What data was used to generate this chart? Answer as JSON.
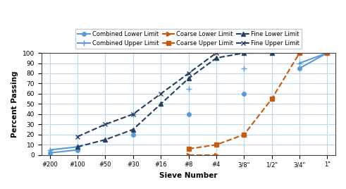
{
  "sieve_labels": [
    "#200",
    "#100",
    "#50",
    "#30",
    "#16",
    "#8",
    "#4",
    "3/8\"",
    "1/2\"",
    "3/4\"",
    "1\""
  ],
  "x_positions": [
    0,
    1,
    2,
    3,
    4,
    5,
    6,
    7,
    8,
    9,
    10
  ],
  "combined_lower": [
    2,
    5,
    null,
    20,
    null,
    40,
    null,
    60,
    null,
    85,
    100
  ],
  "combined_upper": [
    5,
    8,
    null,
    40,
    null,
    65,
    null,
    85,
    null,
    90,
    100
  ],
  "coarse_lower": [
    null,
    null,
    null,
    null,
    null,
    0,
    0,
    null,
    null,
    null,
    100
  ],
  "coarse_upper": [
    null,
    null,
    null,
    null,
    null,
    6,
    10,
    20,
    55,
    100,
    100
  ],
  "fine_lower": [
    null,
    8,
    15,
    25,
    50,
    75,
    95,
    100,
    100,
    null,
    null
  ],
  "fine_upper": [
    null,
    18,
    30,
    40,
    60,
    80,
    100,
    100,
    100,
    null,
    null
  ],
  "colors": {
    "combined": "#5b9bd5",
    "coarse": "#c55a11",
    "fine": "#243f60"
  },
  "xlabel": "Sieve Number",
  "ylabel": "Percent Passing",
  "ylim": [
    0,
    100
  ],
  "yticks": [
    0,
    10,
    20,
    30,
    40,
    50,
    60,
    70,
    80,
    90,
    100
  ],
  "background_color": "#ffffff",
  "grid_color": "#bdd7ee",
  "figsize": [
    4.91,
    2.68
  ],
  "dpi": 100
}
